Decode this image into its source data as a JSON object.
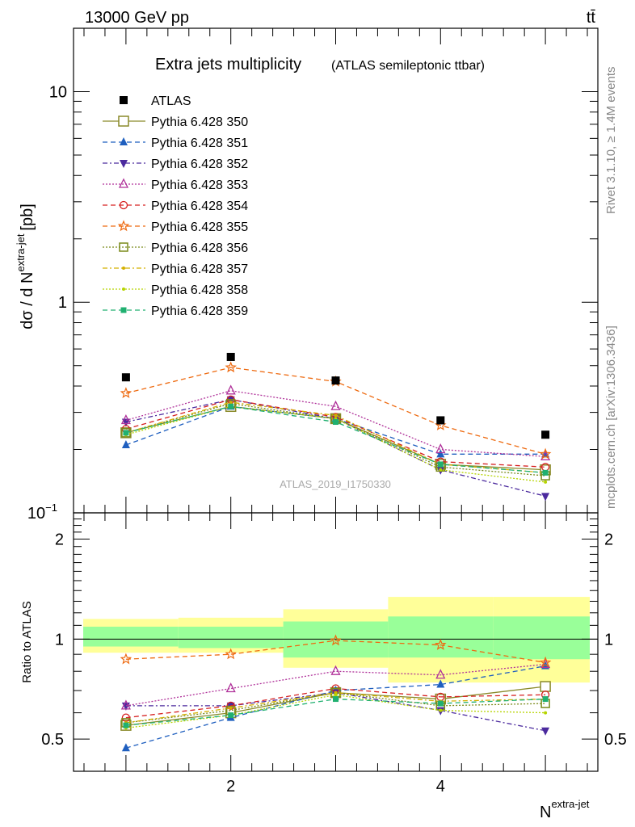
{
  "header": {
    "energy_label": "13000 GeV pp",
    "process_label": "tt̄"
  },
  "side_labels": {
    "rivet": "Rivet 3.1.10, ≥ 1.4M events",
    "mcplots": "mcplots.cern.ch [arXiv:1306.3436]"
  },
  "watermark": "ATLAS_2019_I1750330",
  "chart_data": [
    {
      "type": "scatter",
      "title": "Extra jets multiplicity",
      "subtitle": "(ATLAS semileptonic ttbar)",
      "xlabel": "N",
      "xlabel_sup": "extra-jet",
      "ylabel": "dσ / d N",
      "ylabel_sup": "extra-jet",
      "ylabel_unit": "[pb]",
      "ylog": true,
      "ylim": [
        0.1,
        20
      ],
      "xlim": [
        0.5,
        5.5
      ],
      "yticks": [
        {
          "v": 10,
          "t": "10"
        },
        {
          "v": 1,
          "t": "1"
        },
        {
          "v": 0.1,
          "t": "10"
        }
      ],
      "ytick_exp": "−1",
      "x": [
        1,
        2,
        3,
        4,
        5
      ],
      "data_series": {
        "name": "ATLAS",
        "values": [
          0.44,
          0.55,
          0.425,
          0.275,
          0.235
        ]
      },
      "series": [
        {
          "name": "Pythia 6.428 350",
          "color": "#8a8a2a",
          "marker": "open-square",
          "dash": "",
          "values": [
            0.24,
            0.32,
            0.28,
            0.17,
            0.16
          ]
        },
        {
          "name": "Pythia 6.428 351",
          "color": "#1f5fbf",
          "marker": "filled-triangle-up",
          "dash": "6,4",
          "values": [
            0.21,
            0.32,
            0.28,
            0.19,
            0.19
          ]
        },
        {
          "name": "Pythia 6.428 352",
          "color": "#4b2a9e",
          "marker": "filled-triangle-down",
          "dash": "6,3,2,3",
          "values": [
            0.27,
            0.345,
            0.28,
            0.16,
            0.12
          ]
        },
        {
          "name": "Pythia 6.428 353",
          "color": "#b0329a",
          "marker": "open-triangle-up",
          "dash": "2,2",
          "values": [
            0.275,
            0.38,
            0.32,
            0.2,
            0.185
          ]
        },
        {
          "name": "Pythia 6.428 354",
          "color": "#d62020",
          "marker": "open-circle",
          "dash": "6,4",
          "values": [
            0.25,
            0.345,
            0.285,
            0.175,
            0.165
          ]
        },
        {
          "name": "Pythia 6.428 355",
          "color": "#ee6a10",
          "marker": "open-star",
          "dash": "6,4",
          "values": [
            0.37,
            0.49,
            0.42,
            0.26,
            0.19
          ]
        },
        {
          "name": "Pythia 6.428 356",
          "color": "#7a8a1a",
          "marker": "open-square-small",
          "dash": "2,2",
          "values": [
            0.24,
            0.33,
            0.28,
            0.165,
            0.15
          ]
        },
        {
          "name": "Pythia 6.428 357",
          "color": "#d4b000",
          "marker": "dot",
          "dash": "6,3,2,3",
          "values": [
            0.24,
            0.335,
            0.29,
            0.17,
            0.155
          ]
        },
        {
          "name": "Pythia 6.428 358",
          "color": "#b6d400",
          "marker": "dot",
          "dash": "2,2",
          "values": [
            0.235,
            0.32,
            0.28,
            0.16,
            0.14
          ]
        },
        {
          "name": "Pythia 6.428 359",
          "color": "#20b070",
          "marker": "filled-square-small",
          "dash": "6,4",
          "values": [
            0.24,
            0.32,
            0.27,
            0.17,
            0.155
          ]
        }
      ]
    },
    {
      "type": "scatter",
      "ylabel": "Ratio to ATLAS",
      "ylim": [
        0.4,
        2.4
      ],
      "yticks": [
        {
          "v": 0.5,
          "t": "0.5"
        },
        {
          "v": 1,
          "t": "1"
        },
        {
          "v": 2,
          "t": "2"
        }
      ],
      "xticks": [
        {
          "v": 2,
          "t": "2"
        },
        {
          "v": 4,
          "t": "4"
        }
      ],
      "x": [
        1,
        2,
        3,
        4,
        5
      ],
      "uncertainty_bands": {
        "x_edges": [
          0.5,
          1.5,
          2.5,
          3.5,
          4.5,
          5.5
        ],
        "stat": [
          [
            0.95,
            1.09
          ],
          [
            0.94,
            1.09
          ],
          [
            0.88,
            1.13
          ],
          [
            0.88,
            1.17
          ],
          [
            0.87,
            1.17
          ]
        ],
        "total": [
          [
            0.91,
            1.15
          ],
          [
            0.91,
            1.16
          ],
          [
            0.82,
            1.23
          ],
          [
            0.74,
            1.34
          ],
          [
            0.74,
            1.34
          ]
        ]
      },
      "series": [
        {
          "name": "Pythia 6.428 350",
          "values": [
            0.55,
            0.6,
            0.69,
            0.66,
            0.72
          ]
        },
        {
          "name": "Pythia 6.428 351",
          "values": [
            0.47,
            0.58,
            0.7,
            0.73,
            0.83
          ]
        },
        {
          "name": "Pythia 6.428 352",
          "values": [
            0.63,
            0.63,
            0.69,
            0.61,
            0.53
          ]
        },
        {
          "name": "Pythia 6.428 353",
          "values": [
            0.63,
            0.71,
            0.8,
            0.78,
            0.84
          ]
        },
        {
          "name": "Pythia 6.428 354",
          "values": [
            0.58,
            0.63,
            0.71,
            0.67,
            0.68
          ]
        },
        {
          "name": "Pythia 6.428 355",
          "values": [
            0.87,
            0.9,
            0.99,
            0.96,
            0.85
          ]
        },
        {
          "name": "Pythia 6.428 356",
          "values": [
            0.56,
            0.61,
            0.69,
            0.63,
            0.64
          ]
        },
        {
          "name": "Pythia 6.428 357",
          "values": [
            0.56,
            0.62,
            0.69,
            0.65,
            0.66
          ]
        },
        {
          "name": "Pythia 6.428 358",
          "values": [
            0.54,
            0.59,
            0.68,
            0.61,
            0.6
          ]
        },
        {
          "name": "Pythia 6.428 359",
          "values": [
            0.55,
            0.59,
            0.66,
            0.64,
            0.66
          ]
        }
      ]
    }
  ]
}
